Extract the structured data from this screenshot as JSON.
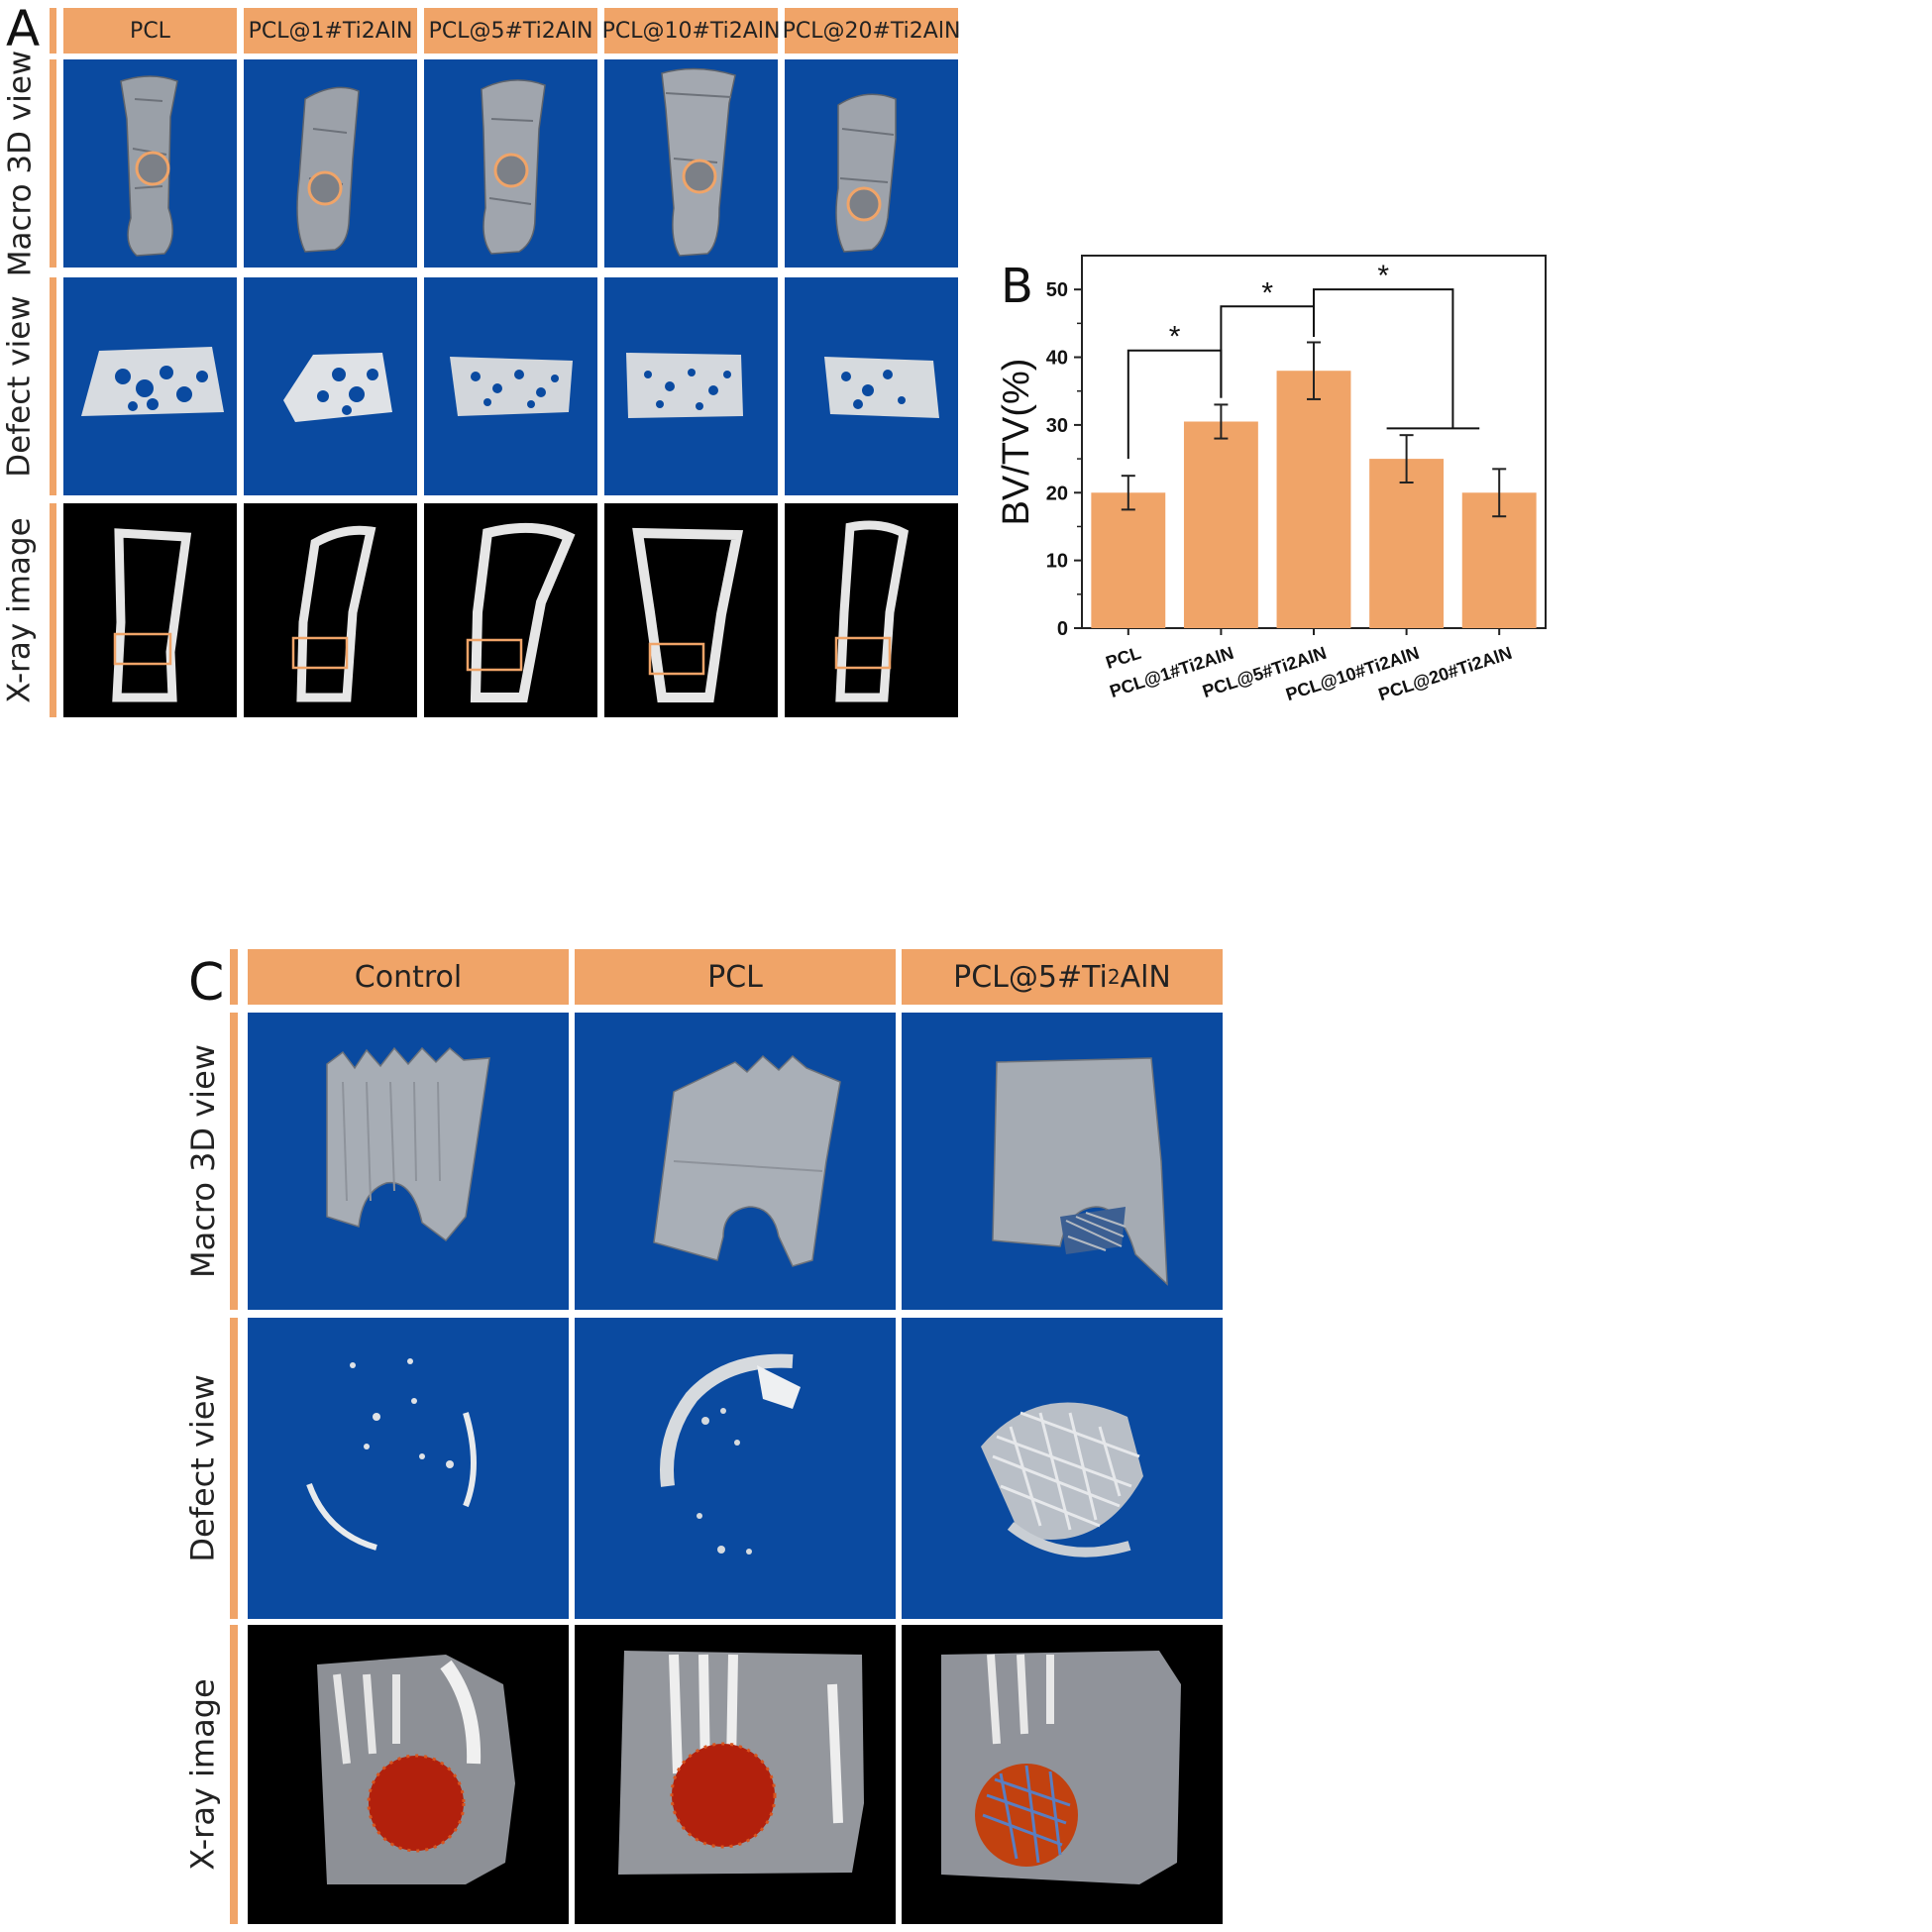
{
  "panel_a": {
    "letter": "A",
    "columns": [
      "PCL",
      "PCL@1#Ti2AlN",
      "PCL@5#Ti2AlN",
      "PCL@10#Ti2AlN",
      "PCL@20#Ti2AlN"
    ],
    "rows": [
      "Macro 3D view",
      "Defect view",
      "X-ray image"
    ]
  },
  "panel_b": {
    "letter": "B"
  },
  "panel_c": {
    "letter": "C",
    "columns": [
      "Control",
      "PCL",
      "PCL@5#Ti",
      "2",
      "AlN"
    ],
    "rows": [
      "Macro 3D view",
      "Defect view",
      "X-ray image"
    ]
  },
  "colors": {
    "header_orange": "#f0a468",
    "tile_blue": "#0a4aa0",
    "bar_fill": "#f0a468",
    "heat_red": "#b2200c"
  },
  "chart_data": {
    "type": "bar",
    "categories": [
      "PCL",
      "PCL@1#Ti2AlN",
      "PCL@5#Ti2AlN",
      "PCL@10#Ti2AlN",
      "PCL@20#Ti2AlN"
    ],
    "values": [
      20,
      30.5,
      38,
      25,
      20
    ],
    "errors": [
      2.5,
      2.5,
      4.2,
      3.5,
      3.5
    ],
    "ylabel": "BV/TV(%)",
    "xlabel": "",
    "ylim": [
      0,
      55
    ],
    "yticks": [
      0,
      10,
      20,
      30,
      40,
      50
    ],
    "significance": [
      "*",
      "*",
      "*"
    ],
    "grid": false
  }
}
